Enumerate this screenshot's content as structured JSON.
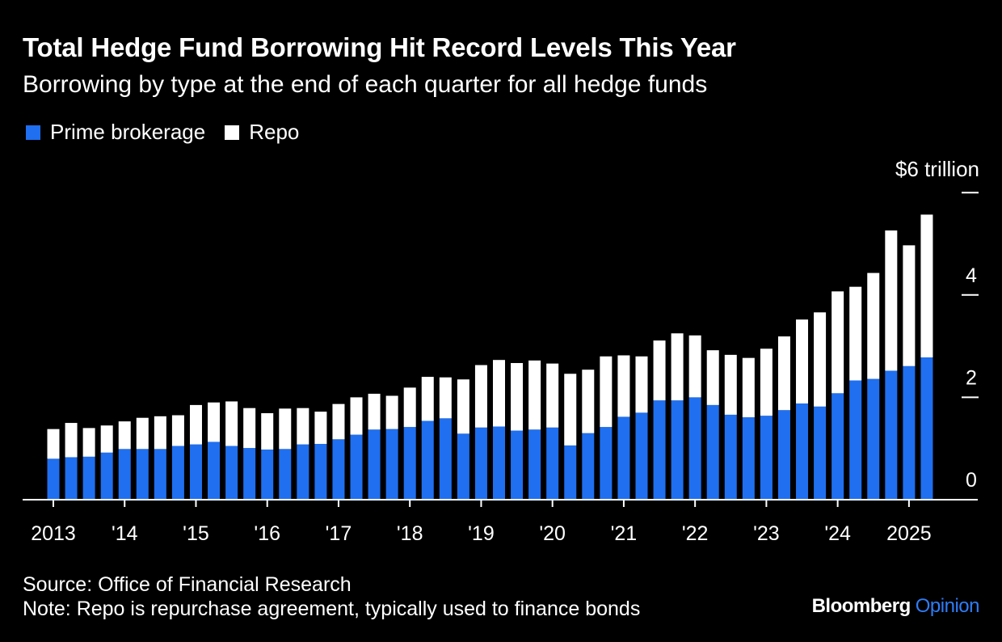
{
  "header": {
    "title": "Total Hedge Fund Borrowing Hit Record Levels This Year",
    "subtitle": "Borrowing by type at the end of each quarter for all hedge funds"
  },
  "footer": {
    "source": "Source: Office of Financial Research",
    "note": "Note: Repo is repurchase agreement, typically used to finance bonds",
    "brand_name": "Bloomberg",
    "brand_suffix": "Opinion"
  },
  "colors": {
    "background": "#000000",
    "prime_brokerage": "#1f6ff0",
    "repo": "#ffffff",
    "brand_accent": "#2f7cf6"
  },
  "chart_data": {
    "type": "bar",
    "stacked": true,
    "title": "Total Hedge Fund Borrowing Hit Record Levels This Year",
    "subtitle": "Borrowing by type at the end of each quarter for all hedge funds",
    "y_axis_title": "$6 trillion",
    "ylim": [
      0,
      6
    ],
    "y_ticks": [
      {
        "value": 0,
        "label": "0"
      },
      {
        "value": 2,
        "label": "2"
      },
      {
        "value": 4,
        "label": "4"
      },
      {
        "value": 6,
        "label": ""
      }
    ],
    "x_ticks": [
      {
        "index": 0,
        "label": "2013"
      },
      {
        "index": 4,
        "label": "'14"
      },
      {
        "index": 8,
        "label": "'15"
      },
      {
        "index": 12,
        "label": "'16"
      },
      {
        "index": 16,
        "label": "'17"
      },
      {
        "index": 20,
        "label": "'18"
      },
      {
        "index": 24,
        "label": "'19"
      },
      {
        "index": 28,
        "label": "'20"
      },
      {
        "index": 32,
        "label": "'21"
      },
      {
        "index": 36,
        "label": "'22"
      },
      {
        "index": 40,
        "label": "'23"
      },
      {
        "index": 44,
        "label": "'24"
      },
      {
        "index": 48,
        "label": "2025"
      }
    ],
    "legend_position": "top-left",
    "grid": false,
    "series": [
      {
        "name": "Prime brokerage",
        "color": "#1f6ff0",
        "values": [
          0.8,
          0.83,
          0.84,
          0.92,
          0.99,
          0.99,
          0.99,
          1.05,
          1.08,
          1.13,
          1.05,
          1.01,
          0.98,
          0.99,
          1.08,
          1.09,
          1.18,
          1.27,
          1.37,
          1.38,
          1.42,
          1.54,
          1.59,
          1.29,
          1.41,
          1.43,
          1.35,
          1.37,
          1.41,
          1.06,
          1.3,
          1.42,
          1.62,
          1.7,
          1.94,
          1.94,
          2.0,
          1.85,
          1.66,
          1.61,
          1.64,
          1.75,
          1.88,
          1.82,
          2.08,
          2.33,
          2.36,
          2.52,
          2.61,
          2.78
        ]
      },
      {
        "name": "Repo",
        "values": [
          0.58,
          0.67,
          0.56,
          0.53,
          0.54,
          0.61,
          0.64,
          0.6,
          0.77,
          0.77,
          0.87,
          0.78,
          0.71,
          0.79,
          0.71,
          0.63,
          0.69,
          0.73,
          0.7,
          0.65,
          0.77,
          0.86,
          0.8,
          1.06,
          1.22,
          1.3,
          1.32,
          1.35,
          1.25,
          1.4,
          1.24,
          1.38,
          1.2,
          1.1,
          1.17,
          1.31,
          1.21,
          1.07,
          1.17,
          1.16,
          1.31,
          1.44,
          1.64,
          1.84,
          1.99,
          1.83,
          2.07,
          2.74,
          2.36,
          2.79
        ]
      }
    ]
  }
}
